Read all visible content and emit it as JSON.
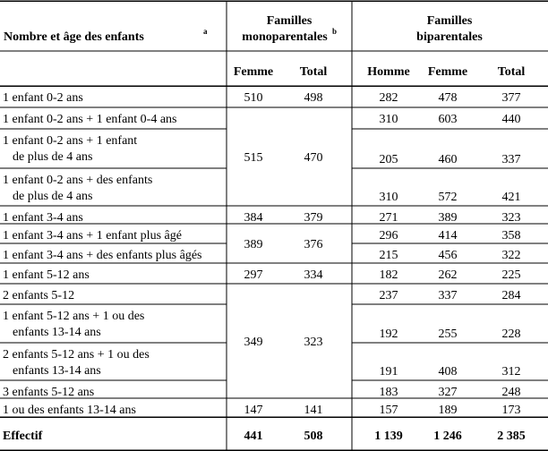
{
  "header": {
    "col0": "Nombre et âge des enfants",
    "col0_sup": "a",
    "mono_line1": "Familles",
    "mono_line2": "monoparentales",
    "mono_sup": "b",
    "bi_line1": "Familles",
    "bi_line2": "biparentales",
    "sub": [
      "Femme",
      "Total",
      "Homme",
      "Femme",
      "Total"
    ]
  },
  "rows": [
    {
      "label": [
        "1 enfant 0-2 ans"
      ],
      "bi": [
        "282",
        "478",
        "377"
      ]
    },
    {
      "label": [
        "1 enfant 0-2 ans + 1 enfant 0-4 ans"
      ],
      "bi": [
        "310",
        "603",
        "440"
      ]
    },
    {
      "label": [
        "1 enfant 0-2 ans + 1 enfant",
        "de plus de 4 ans"
      ],
      "bi": [
        "205",
        "460",
        "337"
      ]
    },
    {
      "label": [
        "1 enfant 0-2 ans + des enfants",
        "de plus de 4 ans"
      ],
      "bi": [
        "310",
        "572",
        "421"
      ]
    },
    {
      "label": [
        "1 enfant 3-4 ans"
      ],
      "bi": [
        "271",
        "389",
        "323"
      ]
    },
    {
      "label": [
        "1 enfant 3-4 ans + 1 enfant plus âgé"
      ],
      "bi": [
        "296",
        "414",
        "358"
      ]
    },
    {
      "label": [
        "1 enfant 3-4 ans + des enfants plus âgés"
      ],
      "bi": [
        "215",
        "456",
        "322"
      ]
    },
    {
      "label": [
        "1 enfant 5-12 ans"
      ],
      "bi": [
        "182",
        "262",
        "225"
      ]
    },
    {
      "label": [
        "2 enfants 5-12"
      ],
      "bi": [
        "237",
        "337",
        "284"
      ]
    },
    {
      "label": [
        "1 enfant 5-12 ans + 1 ou des",
        "enfants 13-14 ans"
      ],
      "bi": [
        "192",
        "255",
        "228"
      ]
    },
    {
      "label": [
        "2 enfants 5-12 ans + 1 ou des",
        "enfants 13-14 ans"
      ],
      "bi": [
        "191",
        "408",
        "312"
      ]
    },
    {
      "label": [
        "3 enfants 5-12 ans"
      ],
      "bi": [
        "183",
        "327",
        "248"
      ]
    },
    {
      "label": [
        "1 ou des enfants 13-14 ans"
      ],
      "bi": [
        "157",
        "189",
        "173"
      ]
    }
  ],
  "mono": [
    {
      "rows": [
        0
      ],
      "femme": "510",
      "total": "498"
    },
    {
      "rows": [
        1,
        2,
        3
      ],
      "femme": "515",
      "total": "470"
    },
    {
      "rows": [
        4
      ],
      "femme": "384",
      "total": "379"
    },
    {
      "rows": [
        5,
        6
      ],
      "femme": "389",
      "total": "376"
    },
    {
      "rows": [
        7
      ],
      "femme": "297",
      "total": "334"
    },
    {
      "rows": [
        8,
        9,
        10,
        11
      ],
      "femme": "349",
      "total": "323"
    },
    {
      "rows": [
        12
      ],
      "femme": "147",
      "total": "141"
    }
  ],
  "effectif": {
    "label": "Effectif",
    "values": [
      "441",
      "508",
      "1 139",
      "1 246",
      "2 385"
    ]
  }
}
